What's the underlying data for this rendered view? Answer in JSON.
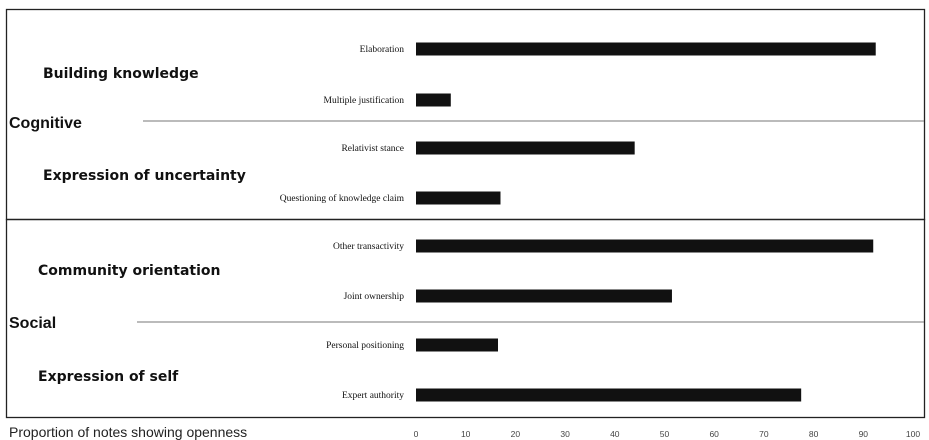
{
  "chart_data": {
    "type": "bar",
    "orientation": "horizontal",
    "xlabel": "Proportion of notes showing openness",
    "xlim": [
      0,
      100
    ],
    "xticks": [
      0,
      10,
      20,
      30,
      40,
      50,
      60,
      70,
      80,
      90,
      100
    ],
    "categories": [
      "Elaboration",
      "Multiple justification",
      "Relativist stance",
      "Questioning of knowledge claim",
      "Other transactivity",
      "Joint ownership",
      "Personal positioning",
      "Expert authority"
    ],
    "values": [
      92.5,
      7,
      44,
      17,
      92,
      51.5,
      16.5,
      77.5
    ],
    "color": "#111111",
    "grid": false,
    "dimensions": [
      {
        "name": "Cognitive",
        "groups": [
          {
            "name": "Building knowledge",
            "categories": [
              "Elaboration",
              "Multiple justification"
            ]
          },
          {
            "name": "Expression of uncertainty",
            "categories": [
              "Relativist stance",
              "Questioning of knowledge claim"
            ]
          }
        ]
      },
      {
        "name": "Social",
        "groups": [
          {
            "name": "Community orientation",
            "categories": [
              "Other transactivity",
              "Joint ownership"
            ]
          },
          {
            "name": "Expression of self",
            "categories": [
              "Personal positioning",
              "Expert authority"
            ]
          }
        ]
      }
    ]
  }
}
